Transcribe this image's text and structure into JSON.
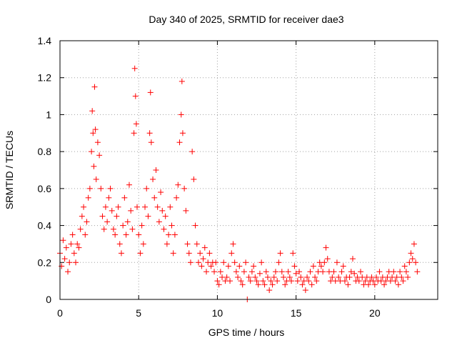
{
  "chart_data": {
    "type": "scatter",
    "title": "Day 340 of 2025, SRMTID for receiver dae3",
    "xlabel": "GPS time / hours",
    "ylabel": "SRMTID / TECUs",
    "xlim": [
      0,
      24
    ],
    "ylim": [
      0,
      1.4
    ],
    "x_ticks": [
      0,
      5,
      10,
      15,
      20
    ],
    "x_tick_labels": [
      "0",
      "5",
      "10",
      "15",
      "20"
    ],
    "y_ticks": [
      0,
      0.2,
      0.4,
      0.6,
      0.8,
      1.0,
      1.2,
      1.4
    ],
    "y_tick_labels": [
      "0",
      "0.2",
      "0.4",
      "0.6",
      "0.8",
      "1",
      "1.2",
      "1.4"
    ],
    "grid": true,
    "marker": "+",
    "series": [
      {
        "name": "SRMTID",
        "color": "#ff0000",
        "x": [
          0.0,
          0.1,
          0.2,
          0.3,
          0.4,
          0.5,
          0.6,
          0.7,
          0.8,
          0.9,
          1.0,
          1.1,
          1.2,
          1.3,
          1.4,
          1.5,
          1.6,
          1.7,
          1.8,
          1.9,
          2.0,
          2.05,
          2.1,
          2.15,
          2.2,
          2.25,
          2.3,
          2.4,
          2.5,
          2.6,
          2.7,
          2.8,
          2.9,
          3.0,
          3.1,
          3.2,
          3.3,
          3.4,
          3.5,
          3.6,
          3.7,
          3.8,
          3.9,
          4.0,
          4.1,
          4.2,
          4.3,
          4.4,
          4.5,
          4.6,
          4.7,
          4.75,
          4.8,
          4.85,
          4.9,
          5.0,
          5.1,
          5.2,
          5.3,
          5.4,
          5.5,
          5.6,
          5.7,
          5.75,
          5.8,
          5.9,
          6.0,
          6.1,
          6.2,
          6.3,
          6.4,
          6.5,
          6.6,
          6.7,
          6.8,
          6.9,
          7.0,
          7.1,
          7.2,
          7.3,
          7.4,
          7.5,
          7.6,
          7.7,
          7.75,
          7.8,
          7.9,
          8.0,
          8.1,
          8.2,
          8.3,
          8.4,
          8.5,
          8.6,
          8.7,
          8.8,
          8.9,
          9.0,
          9.1,
          9.2,
          9.3,
          9.4,
          9.5,
          9.6,
          9.7,
          9.8,
          9.9,
          10.0,
          10.1,
          10.2,
          10.3,
          10.4,
          10.5,
          10.6,
          10.7,
          10.8,
          10.9,
          11.0,
          11.1,
          11.2,
          11.3,
          11.4,
          11.5,
          11.6,
          11.7,
          11.8,
          11.9,
          12.0,
          12.1,
          12.2,
          12.3,
          12.4,
          12.5,
          12.6,
          12.7,
          12.8,
          12.9,
          13.0,
          13.1,
          13.2,
          13.3,
          13.4,
          13.5,
          13.6,
          13.7,
          13.8,
          13.9,
          14.0,
          14.1,
          14.2,
          14.3,
          14.4,
          14.5,
          14.6,
          14.7,
          14.8,
          14.9,
          15.0,
          15.1,
          15.2,
          15.3,
          15.4,
          15.5,
          15.6,
          15.7,
          15.8,
          15.9,
          16.0,
          16.1,
          16.2,
          16.3,
          16.4,
          16.5,
          16.6,
          16.7,
          16.8,
          16.9,
          17.0,
          17.1,
          17.2,
          17.3,
          17.4,
          17.5,
          17.6,
          17.7,
          17.8,
          17.9,
          18.0,
          18.1,
          18.2,
          18.3,
          18.4,
          18.5,
          18.6,
          18.7,
          18.8,
          18.9,
          19.0,
          19.1,
          19.2,
          19.3,
          19.4,
          19.5,
          19.6,
          19.7,
          19.8,
          19.9,
          20.0,
          20.1,
          20.2,
          20.3,
          20.4,
          20.5,
          20.6,
          20.7,
          20.8,
          20.9,
          21.0,
          21.1,
          21.2,
          21.3,
          21.4,
          21.5,
          21.6,
          21.7,
          21.8,
          21.9,
          22.0,
          22.1,
          22.2,
          22.3,
          22.4,
          22.5,
          22.6,
          22.7
        ],
        "y": [
          0.25,
          0.18,
          0.32,
          0.22,
          0.28,
          0.15,
          0.2,
          0.3,
          0.35,
          0.25,
          0.2,
          0.3,
          0.28,
          0.38,
          0.45,
          0.5,
          0.35,
          0.42,
          0.55,
          0.6,
          0.8,
          1.02,
          0.9,
          0.72,
          1.15,
          0.92,
          0.65,
          0.85,
          0.78,
          0.6,
          0.45,
          0.38,
          0.5,
          0.42,
          0.55,
          0.6,
          0.48,
          0.38,
          0.35,
          0.45,
          0.5,
          0.3,
          0.25,
          0.4,
          0.55,
          0.35,
          0.42,
          0.62,
          0.48,
          0.38,
          0.9,
          1.25,
          1.1,
          0.95,
          0.5,
          0.35,
          0.25,
          0.4,
          0.3,
          0.5,
          0.6,
          0.45,
          0.9,
          1.12,
          0.85,
          0.65,
          0.55,
          0.7,
          0.5,
          0.42,
          0.58,
          0.48,
          0.38,
          0.45,
          0.3,
          0.35,
          0.5,
          0.4,
          0.25,
          0.35,
          0.55,
          0.62,
          0.85,
          1.0,
          1.18,
          0.9,
          0.6,
          0.48,
          0.3,
          0.25,
          0.2,
          0.8,
          0.65,
          0.4,
          0.3,
          0.2,
          0.25,
          0.18,
          0.22,
          0.28,
          0.15,
          0.2,
          0.25,
          0.18,
          0.2,
          0.15,
          0.2,
          0.1,
          0.08,
          0.15,
          0.12,
          0.2,
          0.1,
          0.12,
          0.18,
          0.1,
          0.25,
          0.3,
          0.2,
          0.15,
          0.12,
          0.18,
          0.1,
          0.08,
          0.15,
          0.2,
          0.0,
          0.12,
          0.1,
          0.15,
          0.18,
          0.12,
          0.1,
          0.08,
          0.14,
          0.2,
          0.1,
          0.08,
          0.15,
          0.12,
          0.05,
          0.1,
          0.08,
          0.12,
          0.15,
          0.1,
          0.2,
          0.25,
          0.15,
          0.12,
          0.08,
          0.1,
          0.15,
          0.12,
          0.1,
          0.25,
          0.18,
          0.14,
          0.1,
          0.15,
          0.12,
          0.08,
          0.1,
          0.05,
          0.12,
          0.1,
          0.15,
          0.08,
          0.18,
          0.12,
          0.1,
          0.15,
          0.2,
          0.18,
          0.15,
          0.2,
          0.28,
          0.22,
          0.15,
          0.1,
          0.12,
          0.15,
          0.1,
          0.2,
          0.12,
          0.1,
          0.15,
          0.18,
          0.1,
          0.12,
          0.08,
          0.12,
          0.15,
          0.22,
          0.14,
          0.1,
          0.12,
          0.1,
          0.15,
          0.12,
          0.08,
          0.1,
          0.12,
          0.08,
          0.1,
          0.12,
          0.1,
          0.08,
          0.12,
          0.1,
          0.15,
          0.1,
          0.12,
          0.08,
          0.1,
          0.12,
          0.15,
          0.1,
          0.12,
          0.15,
          0.1,
          0.12,
          0.08,
          0.15,
          0.12,
          0.1,
          0.18,
          0.15,
          0.12,
          0.2,
          0.25,
          0.22,
          0.3,
          0.2,
          0.15
        ]
      }
    ]
  }
}
